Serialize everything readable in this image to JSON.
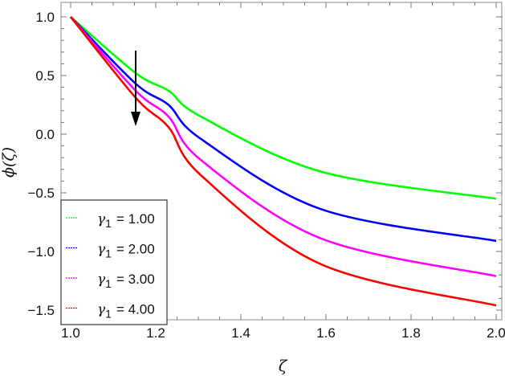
{
  "chart_data": {
    "type": "line",
    "title": "",
    "xlabel": "ζ",
    "ylabel": "ϕ(ζ)",
    "xlim": [
      1.0,
      2.0
    ],
    "ylim": [
      -1.6,
      1.1
    ],
    "x_ticks": [
      "1.0",
      "1.2",
      "1.4",
      "1.6",
      "1.8",
      "2.0"
    ],
    "y_ticks": [
      "1.0",
      "0.5",
      "0.0",
      "−0.5",
      "−1.0",
      "−1.5"
    ],
    "grid": false,
    "legend_position": "bottom-left",
    "annotation": "downward arrow at ζ≈1.15 indicating ϕ decreases as γ1 increases",
    "x": [
      1.0,
      1.153,
      1.23,
      1.306,
      1.589,
      2.0
    ],
    "series": [
      {
        "name": "γ1 = 1.00",
        "color": "#00ff00",
        "values": [
          1.0,
          0.52,
          0.37,
          0.15,
          -0.32,
          -0.55
        ]
      },
      {
        "name": "γ1 = 2.00",
        "color": "#0000ff",
        "values": [
          1.0,
          0.43,
          0.25,
          -0.04,
          -0.64,
          -0.91
        ]
      },
      {
        "name": "γ1 = 3.00",
        "color": "#ff00ff",
        "values": [
          1.0,
          0.37,
          0.15,
          -0.22,
          -0.89,
          -1.21
        ]
      },
      {
        "name": "γ1 = 4.00",
        "color": "#ff0000",
        "values": [
          1.0,
          0.31,
          0.06,
          -0.35,
          -1.11,
          -1.46
        ]
      }
    ]
  },
  "legend": {
    "items": [
      {
        "symbol": "γ",
        "sub": "1",
        "value": "= 1.00",
        "color": "#00ff00"
      },
      {
        "symbol": "γ",
        "sub": "1",
        "value": "= 2.00",
        "color": "#0000ff"
      },
      {
        "symbol": "γ",
        "sub": "1",
        "value": "= 3.00",
        "color": "#ff00ff"
      },
      {
        "symbol": "γ",
        "sub": "1",
        "value": "= 4.00",
        "color": "#ff0000"
      }
    ]
  },
  "axes": {
    "xlabel": "ζ",
    "ylabel": "ϕ(ζ)"
  }
}
